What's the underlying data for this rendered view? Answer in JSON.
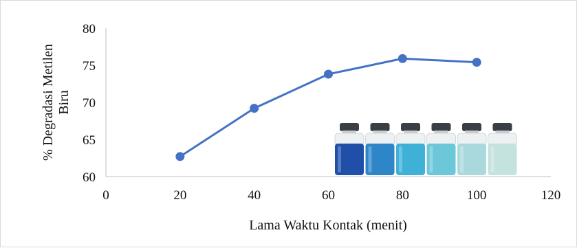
{
  "chart_data": {
    "type": "line",
    "title": "",
    "xlabel": "Lama Waktu Kontak (menit)",
    "ylabel": [
      "% Degradasi Metilen",
      "Biru"
    ],
    "xlim": [
      0,
      120
    ],
    "ylim": [
      60,
      80
    ],
    "x_ticks": [
      0,
      20,
      40,
      60,
      80,
      100,
      120
    ],
    "y_ticks": [
      60,
      65,
      70,
      75,
      80
    ],
    "grid": false,
    "legend": "none",
    "series": [
      {
        "x": [
          20,
          40,
          60,
          80,
          100
        ],
        "values": [
          62.7,
          69.2,
          73.8,
          75.9,
          75.4
        ],
        "color": "#4472c4"
      }
    ]
  },
  "inset_image": {
    "description": "photo of six vials of methylene blue solution, fading from dark blue to pale",
    "vial_colors": [
      "#1f4fa8",
      "#2e86c8",
      "#3fb0d6",
      "#6cc7d9",
      "#a9d9dc",
      "#c4e2de"
    ]
  }
}
